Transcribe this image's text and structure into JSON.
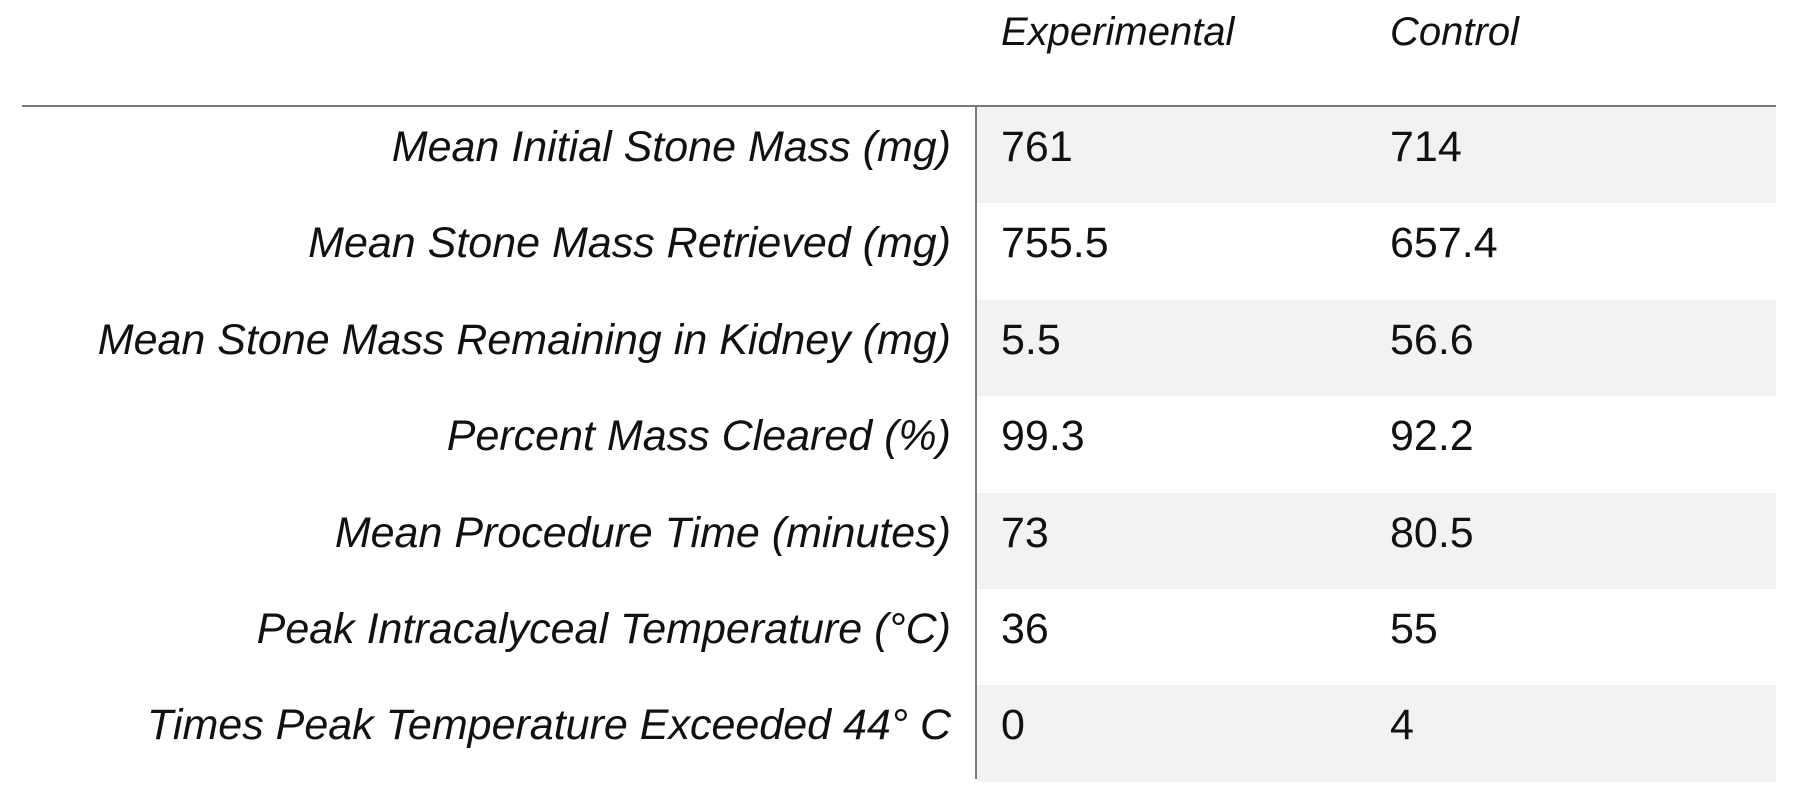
{
  "table": {
    "headers": {
      "experimental": "Experimental",
      "control": "Control"
    },
    "rows": [
      {
        "label": "Mean Initial Stone Mass (mg)",
        "experimental": "761",
        "control": "714"
      },
      {
        "label": "Mean Stone Mass Retrieved (mg)",
        "experimental": "755.5",
        "control": "657.4"
      },
      {
        "label": "Mean Stone Mass Remaining in Kidney (mg)",
        "experimental": "5.5",
        "control": "56.6"
      },
      {
        "label": "Percent Mass Cleared (%)",
        "experimental": "99.3",
        "control": "92.2"
      },
      {
        "label": "Mean Procedure Time (minutes)",
        "experimental": "73",
        "control": "80.5"
      },
      {
        "label": "Peak Intracalyceal Temperature (°C)",
        "experimental": "36",
        "control": "55"
      },
      {
        "label": "Times Peak Temperature Exceeded 44° C",
        "experimental": "0",
        "control": "4"
      }
    ],
    "colors": {
      "stripe": "#f2f2f2",
      "rule": "#7a7a7a",
      "text": "#111111"
    }
  }
}
